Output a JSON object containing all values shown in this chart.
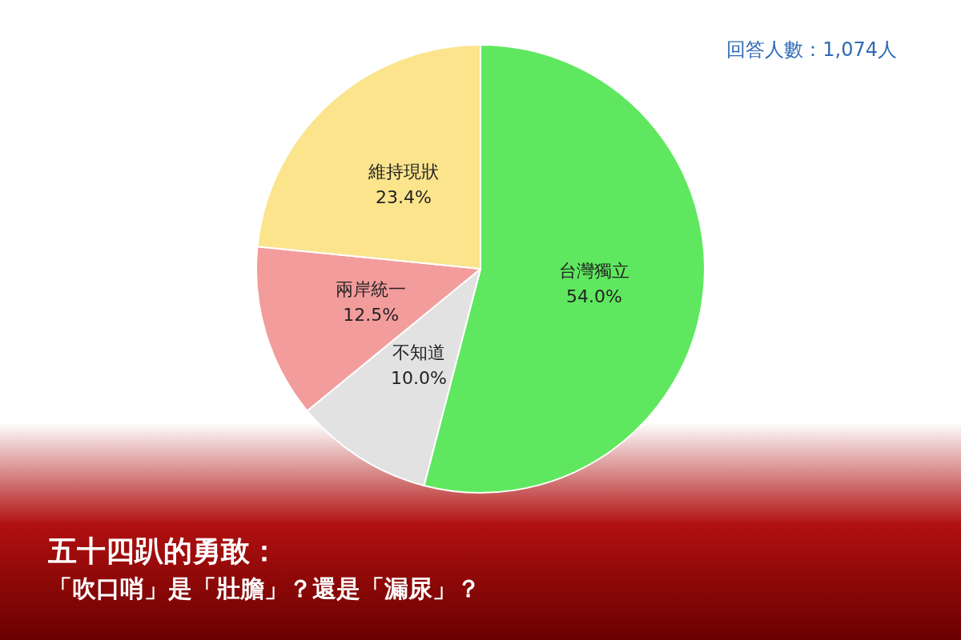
{
  "chart_data": {
    "type": "pie",
    "title": "五十四趴的勇敢：",
    "subtitle": "「吹口哨」是「壯膽」？還是「漏尿」？",
    "annotations": [
      "回答人數：1,074人"
    ],
    "categories": [
      "台灣獨立",
      "不知道",
      "兩岸統一",
      "維持現狀"
    ],
    "values": [
      54.0,
      10.0,
      12.5,
      23.4
    ],
    "value_labels": [
      "54.0%",
      "10.0%",
      "12.5%",
      "23.4%"
    ],
    "colors": [
      "#5fe85f",
      "#e2e2e2",
      "#f39c9c",
      "#fbe48c"
    ],
    "legend": false
  }
}
